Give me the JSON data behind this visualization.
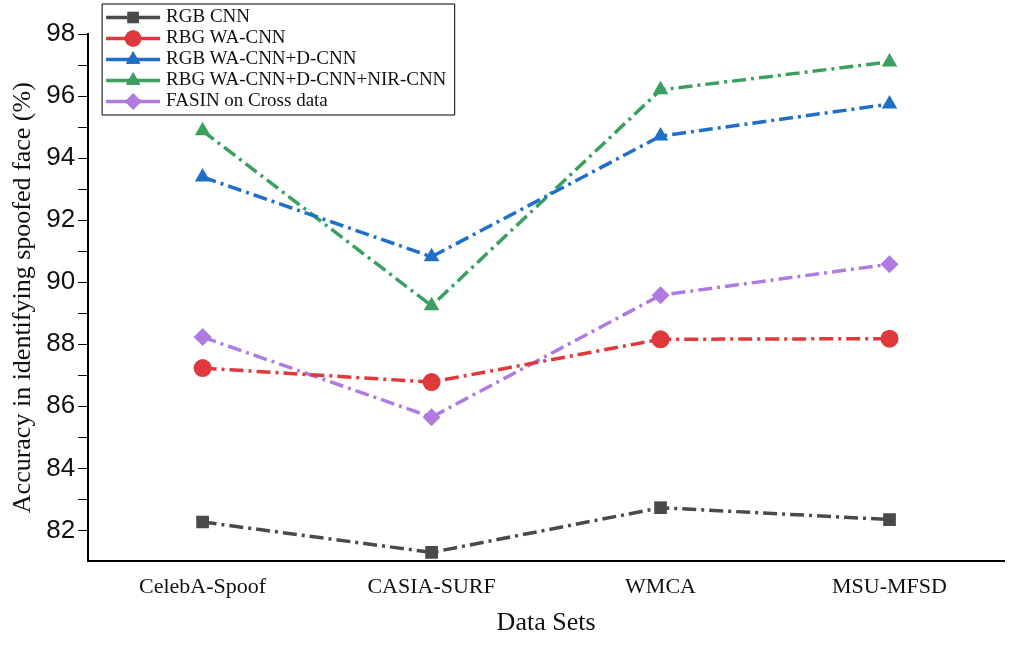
{
  "chart_data": {
    "type": "line",
    "xlabel": "Data Sets",
    "ylabel": "Accuracy in identifying spoofed face (%)",
    "categories": [
      "CelebA-Spoof",
      "CASIA-SURF",
      "WMCA",
      "MSU-MFSD"
    ],
    "series": [
      {
        "name": "RGB CNN",
        "color": "#4a4a4a",
        "marker": "square",
        "values": [
          82.27,
          81.29,
          82.73,
          82.35
        ]
      },
      {
        "name": "RBG WA-CNN",
        "color": "#e0393b",
        "marker": "circle",
        "values": [
          87.23,
          86.78,
          88.16,
          88.18
        ]
      },
      {
        "name": "RGB WA-CNN+D-CNN",
        "color": "#1f6fc9",
        "marker": "triangle",
        "values": [
          93.39,
          90.82,
          94.71,
          95.74
        ]
      },
      {
        "name": "RBG WA-CNN+D-CNN+NIR-CNN",
        "color": "#3aa060",
        "marker": "triangle",
        "values": [
          94.88,
          89.24,
          96.2,
          97.1
        ]
      },
      {
        "name": "FASIN on Cross data",
        "color": "#b07be0",
        "marker": "diamond",
        "values": [
          88.23,
          85.65,
          89.58,
          90.58
        ]
      }
    ],
    "ylim": [
      81,
      98
    ],
    "yticks": [
      82,
      {
        "value": 83,
        "label": null
      },
      84,
      {
        "value": 85,
        "label": null
      },
      86,
      {
        "value": 87,
        "label": null
      },
      88,
      {
        "value": 89,
        "label": null
      },
      90,
      {
        "value": 91,
        "label": null
      },
      92,
      {
        "value": 93,
        "label": null
      },
      94,
      {
        "value": 95,
        "label": null
      },
      96,
      {
        "value": 97,
        "label": null
      },
      98
    ],
    "grid": false,
    "legend": "top left",
    "line_style": "dashed"
  }
}
